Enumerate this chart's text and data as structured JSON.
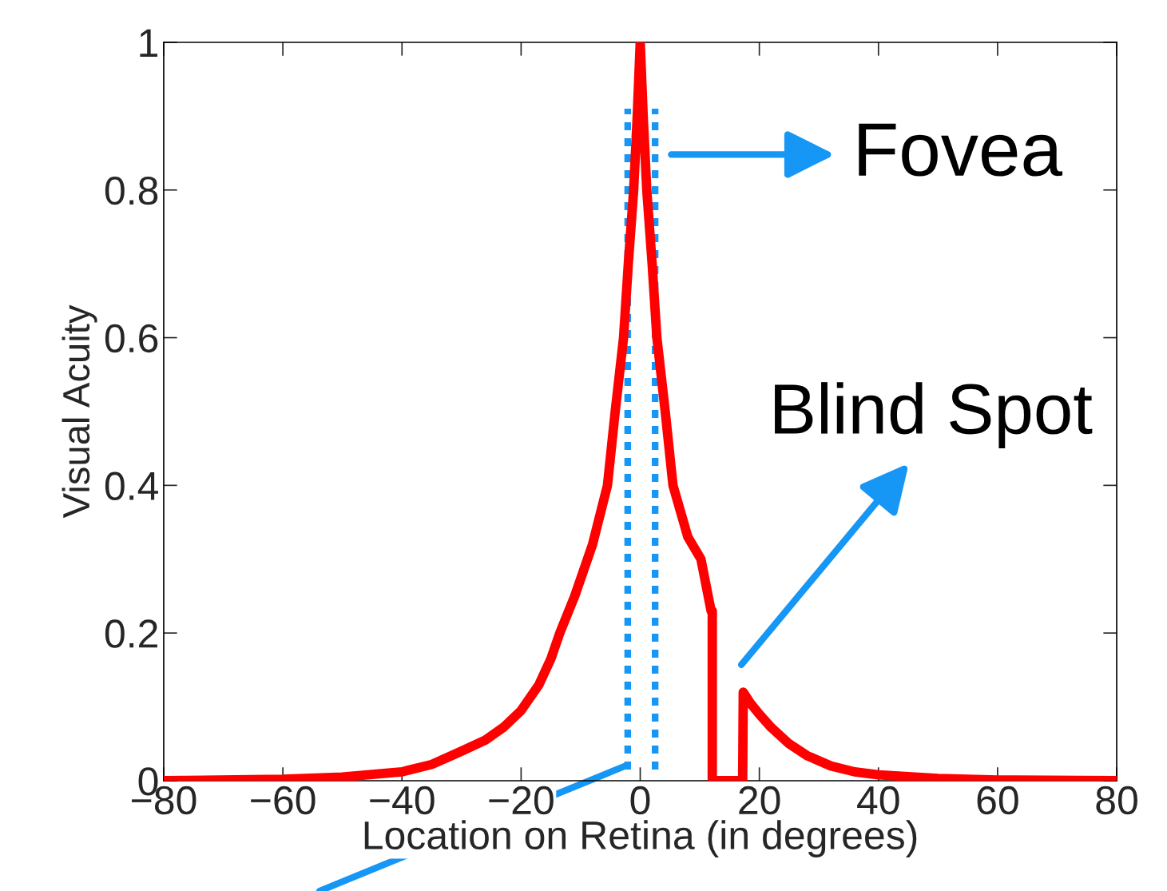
{
  "chart_data": {
    "type": "line",
    "xlabel": "Location on Retina (in degrees)",
    "ylabel": "Visual Acuity",
    "xlim": [
      -80,
      80
    ],
    "xticks": [
      -80,
      -60,
      -40,
      -20,
      0,
      20,
      40,
      60,
      80
    ],
    "ylim": [
      0,
      1
    ],
    "yticks": [
      0,
      0.2,
      0.4,
      0.6,
      0.8,
      1
    ],
    "series": [
      {
        "color": "#ff0000",
        "line_style": "solid",
        "x": [
          -80,
          -60,
          -50,
          -40,
          -35,
          -30,
          -26,
          -23,
          -20,
          -17,
          -15,
          -13.5,
          -11,
          -8,
          -5.5,
          -4.2,
          -2.8,
          -2,
          -1.1,
          -0.5,
          0,
          0.5,
          1.1,
          2,
          2.8,
          4.2,
          5.5,
          8,
          10.2,
          11.9,
          12.1,
          12.1,
          17.2,
          17.3,
          18.5,
          20,
          22,
          25,
          28,
          32,
          36,
          40,
          50,
          60,
          80
        ],
        "values": [
          0,
          0.002,
          0.005,
          0.012,
          0.022,
          0.04,
          0.055,
          0.072,
          0.095,
          0.13,
          0.165,
          0.2,
          0.25,
          0.32,
          0.4,
          0.5,
          0.6,
          0.7,
          0.8,
          0.9,
          1,
          0.9,
          0.8,
          0.7,
          0.6,
          0.5,
          0.4,
          0.33,
          0.3,
          0.23,
          0.23,
          0,
          0,
          0.12,
          0.105,
          0.09,
          0.072,
          0.05,
          0.034,
          0.02,
          0.012,
          0.008,
          0.003,
          0.001,
          0
        ]
      },
      {
        "color": "#1696f5",
        "line_style": "dashed",
        "x": [
          -2.1,
          -2.1
        ],
        "values": [
          0.015,
          0.91
        ]
      },
      {
        "color": "#1696f5",
        "line_style": "dashed",
        "x": [
          2.5,
          2.5
        ],
        "values": [
          0.015,
          0.91
        ]
      }
    ],
    "annotations": [
      "Fovea",
      "Blind Spot"
    ],
    "grid": false,
    "legend": false
  }
}
